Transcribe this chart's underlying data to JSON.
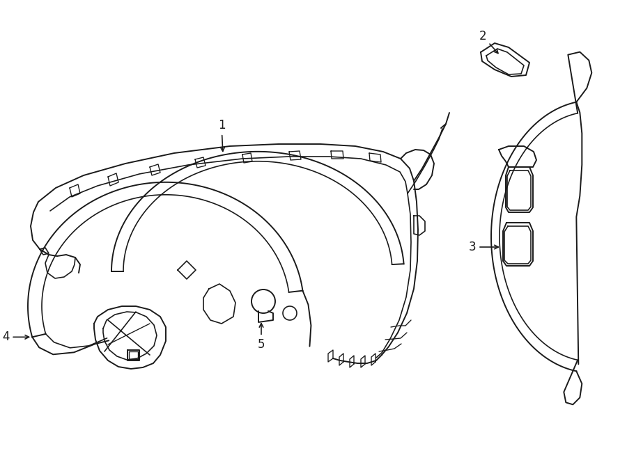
{
  "background_color": "#ffffff",
  "line_color": "#1a1a1a",
  "line_width": 1.4,
  "label_fontsize": 12,
  "fig_width": 9.0,
  "fig_height": 6.61,
  "dpi": 100
}
